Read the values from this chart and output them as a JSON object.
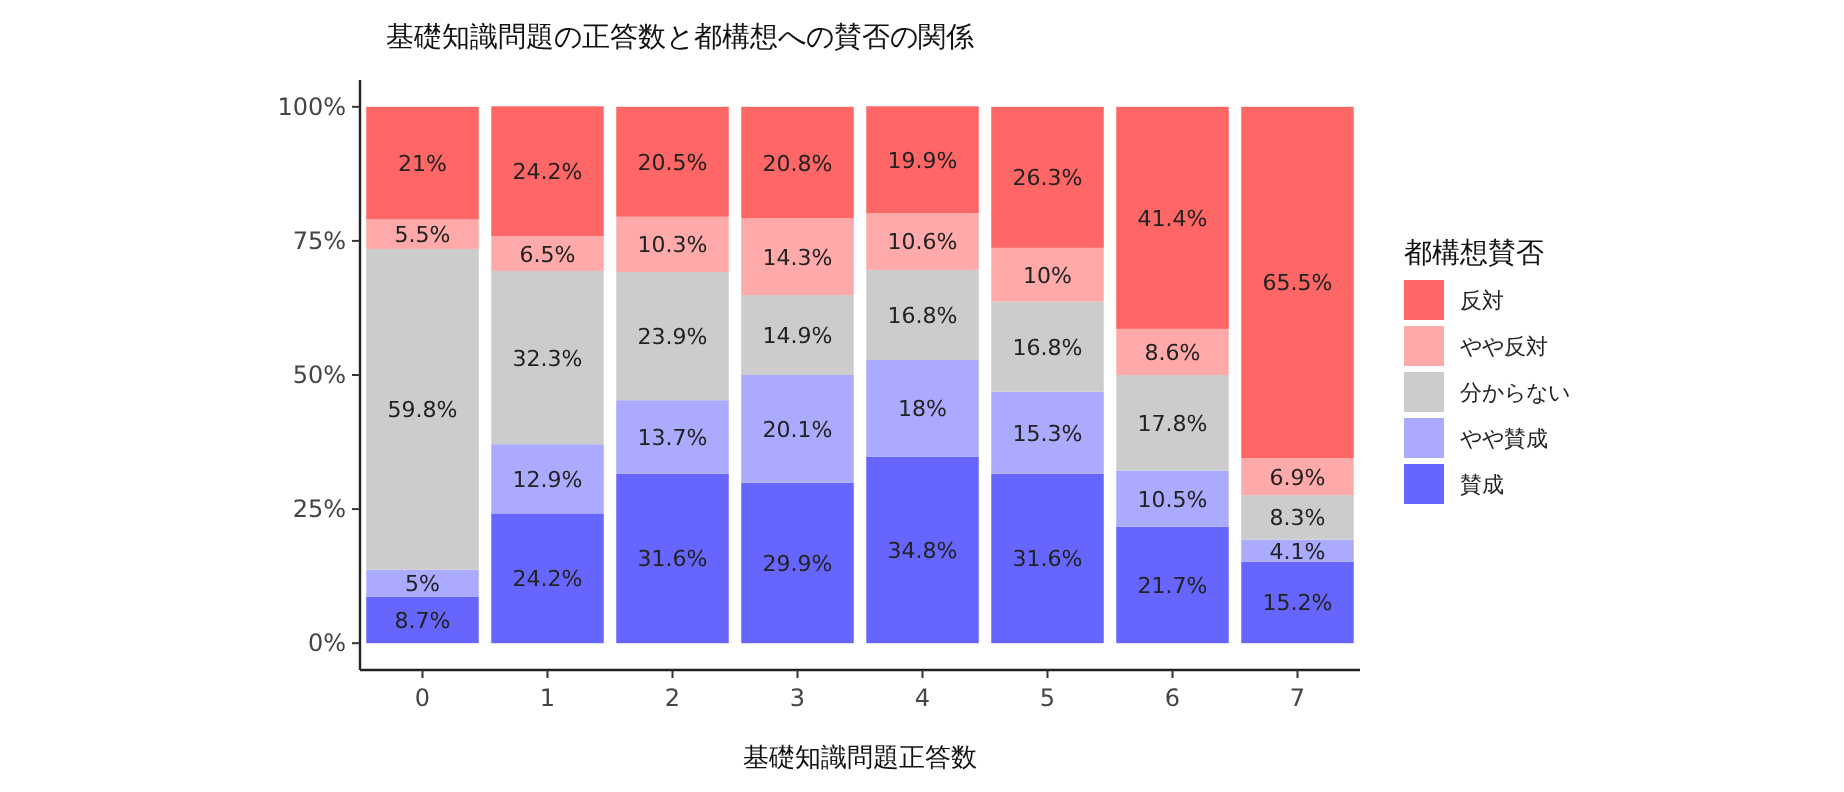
{
  "chart_data": {
    "type": "bar",
    "stacked": true,
    "title": "基礎知識問題の正答数と都構想への賛否の関係",
    "xlabel": "基礎知識問題正答数",
    "legend_title": "都構想賛否",
    "legend": "right",
    "grid": false,
    "categories": [
      "0",
      "1",
      "2",
      "3",
      "4",
      "5",
      "6",
      "7"
    ],
    "ylim": [
      -5,
      105
    ],
    "yticks": [
      {
        "value": 0,
        "label": "0%"
      },
      {
        "value": 25,
        "label": "25%"
      },
      {
        "value": 50,
        "label": "50%"
      },
      {
        "value": 75,
        "label": "75%"
      },
      {
        "value": 100,
        "label": "100%"
      }
    ],
    "series": [
      {
        "name": "賛成",
        "color": "#6666ff",
        "values": [
          8.7,
          24.2,
          31.6,
          29.9,
          34.8,
          31.6,
          21.7,
          15.2
        ],
        "value_labels": [
          "8.7%",
          "24.2%",
          "31.6%",
          "29.9%",
          "34.8%",
          "31.6%",
          "21.7%",
          "15.2%"
        ]
      },
      {
        "name": "やや賛成",
        "color": "#aaaaff",
        "values": [
          5,
          12.9,
          13.7,
          20.1,
          18,
          15.3,
          10.5,
          4.1
        ],
        "value_labels": [
          "5%",
          "12.9%",
          "13.7%",
          "20.1%",
          "18%",
          "15.3%",
          "10.5%",
          "4.1%"
        ]
      },
      {
        "name": "分からない",
        "color": "#cccccc",
        "values": [
          59.8,
          32.3,
          23.9,
          14.9,
          16.8,
          16.8,
          17.8,
          8.3
        ],
        "value_labels": [
          "59.8%",
          "32.3%",
          "23.9%",
          "14.9%",
          "16.8%",
          "16.8%",
          "17.8%",
          "8.3%"
        ]
      },
      {
        "name": "やや反対",
        "color": "#ffaaaa",
        "values": [
          5.5,
          6.5,
          10.3,
          14.3,
          10.6,
          10,
          8.6,
          6.9
        ],
        "value_labels": [
          "5.5%",
          "6.5%",
          "10.3%",
          "14.3%",
          "10.6%",
          "10%",
          "8.6%",
          "6.9%"
        ]
      },
      {
        "name": "反対",
        "color": "#ff6666",
        "values": [
          21,
          24.2,
          20.5,
          20.8,
          19.9,
          26.3,
          41.4,
          65.5
        ],
        "value_labels": [
          "21%",
          "24.2%",
          "20.5%",
          "20.8%",
          "19.9%",
          "26.3%",
          "41.4%",
          "65.5%"
        ]
      }
    ]
  }
}
